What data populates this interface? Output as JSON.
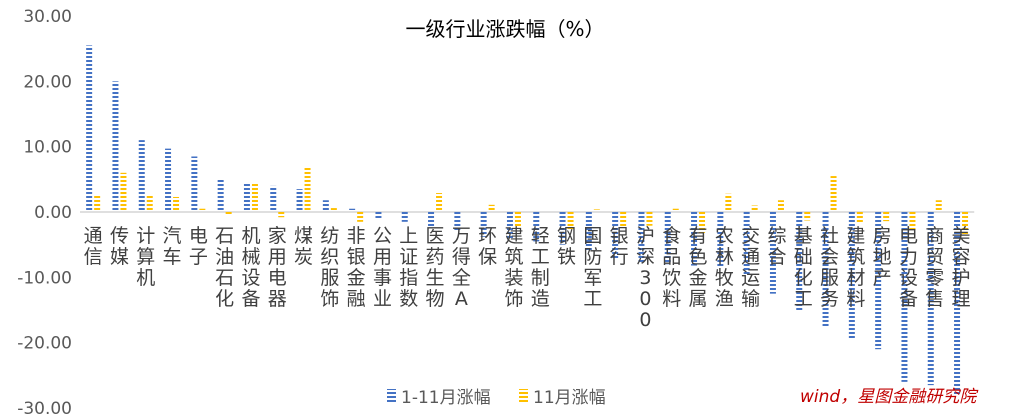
{
  "colors": {
    "series1": "#4472C4",
    "series2": "#FFC000",
    "axis_text": "#595959",
    "gridline": "#D9D9D9",
    "watermark": "#C00000"
  },
  "chart_data": {
    "type": "bar",
    "title": "一级行业涨跌幅（%）",
    "xlabel": "",
    "ylabel": "",
    "ylim": [
      -30,
      30
    ],
    "yticks": [
      "30.00",
      "20.00",
      "10.00",
      "0.00",
      "-10.00",
      "-20.00",
      "-30.00"
    ],
    "grid": false,
    "legend_position": "bottom",
    "categories": [
      "通信",
      "传媒",
      "计算机",
      "汽车",
      "电子",
      "石油石化",
      "机械设备",
      "家用电器",
      "煤炭",
      "纺织服饰",
      "非银金融",
      "公用事业",
      "上证指数",
      "医药生物",
      "万得全A",
      "环保",
      "建筑装饰",
      "轻工制造",
      "钢铁",
      "国防军工",
      "银行",
      "沪深300",
      "食品饮料",
      "有色金属",
      "农林牧渔",
      "交通运输",
      "综合",
      "基础化工",
      "社会服务",
      "建筑材料",
      "房地产",
      "电力设备",
      "商贸零售",
      "美容护理"
    ],
    "series": [
      {
        "name": "1-11月涨幅",
        "values": [
          25.5,
          20.0,
          11.0,
          9.7,
          8.5,
          5.2,
          4.3,
          4.0,
          3.5,
          1.8,
          0.5,
          -1.2,
          -1.5,
          -2.5,
          -3.0,
          -3.8,
          -4.2,
          -4.5,
          -5.0,
          -6.0,
          -7.2,
          -7.8,
          -8.0,
          -8.2,
          -8.5,
          -9.5,
          -12.5,
          -15.0,
          -17.5,
          -19.5,
          -21.0,
          -26.0,
          -26.5,
          -28.0
        ]
      },
      {
        "name": "11月涨幅",
        "values": [
          2.5,
          6.0,
          2.5,
          2.3,
          0.5,
          -0.6,
          4.3,
          -0.8,
          7.0,
          0.6,
          -1.5,
          0.3,
          0.3,
          2.9,
          0.3,
          1.1,
          -2.4,
          0.3,
          -2.6,
          0.4,
          -2.2,
          -2.1,
          0.5,
          -3.2,
          2.8,
          1.0,
          1.8,
          -1.3,
          5.5,
          -1.6,
          -1.4,
          -2.9,
          1.8,
          -3.4
        ]
      }
    ]
  },
  "watermark": "wind，星图金融研究院"
}
